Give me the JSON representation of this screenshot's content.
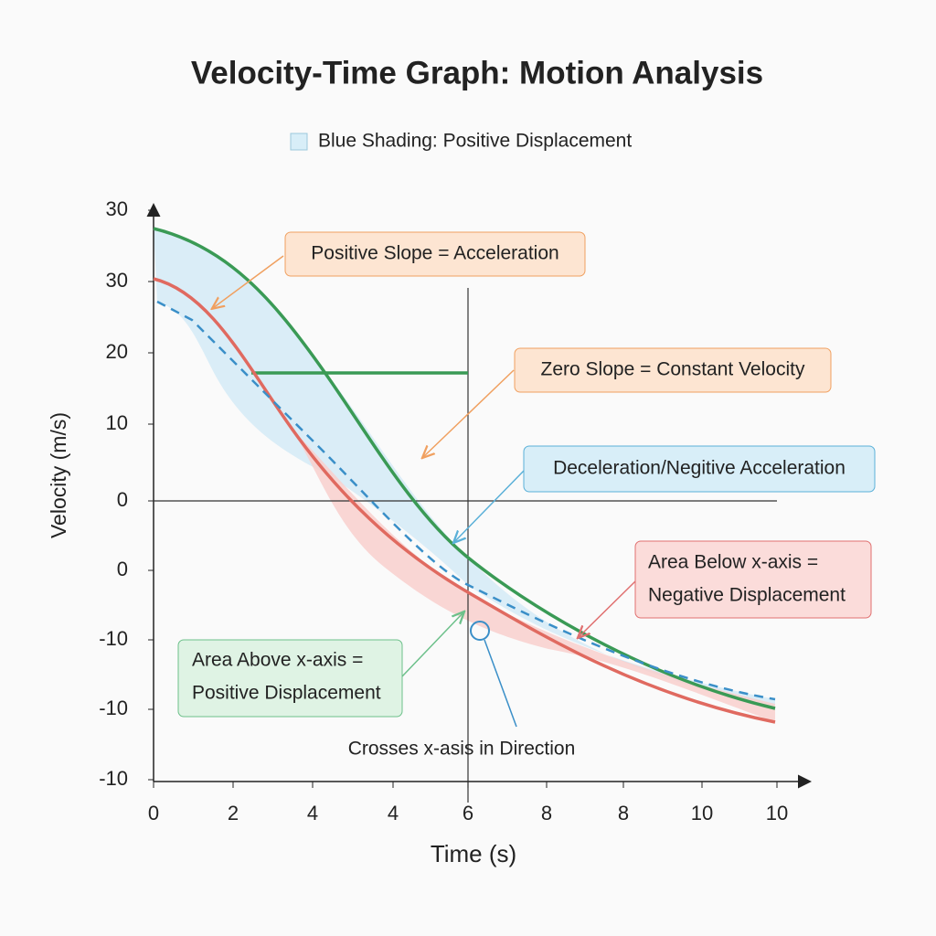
{
  "header": {
    "title": "Velocity-Time Graph: Motion Analysis"
  },
  "legend": {
    "label": "Blue Shading: Positive Displacement"
  },
  "axes": {
    "y_label": "Velocity (m/s)",
    "x_label": "Time (s)",
    "y_tick_labels": [
      "30",
      "30",
      "20",
      "10",
      "0",
      "0",
      "-10",
      "-10",
      "-10"
    ],
    "x_tick_labels": [
      "0",
      "2",
      "4",
      "4",
      "6",
      "8",
      "8",
      "10",
      "10"
    ]
  },
  "annotations": {
    "positive_slope": "Positive Slope = Acceleration",
    "zero_slope": "Zero Slope = Constant Velocity",
    "deceleration": "Deceleration/Negitive Acceleration",
    "area_below": [
      "Area Below x-axis =",
      "Negative Displacement"
    ],
    "area_above": [
      "Area Above x-axis =",
      "Positive Displacement"
    ],
    "crosses": "Crosses x-asis in Direction"
  }
}
